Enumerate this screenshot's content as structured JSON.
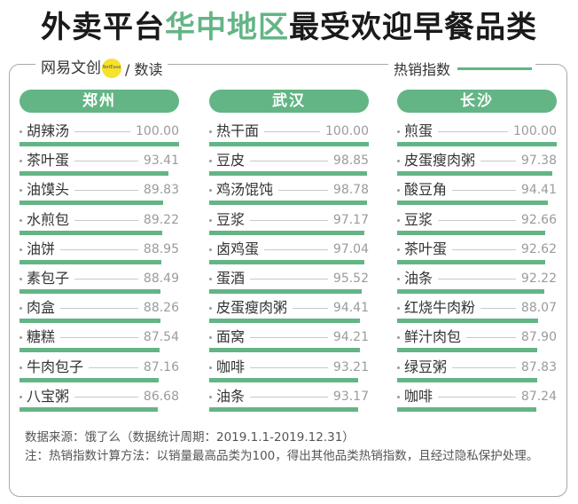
{
  "title": {
    "prefix": "外卖平台",
    "highlight": "华中地区",
    "suffix": "最受欢迎早餐品类"
  },
  "brand": {
    "name": "网易文创",
    "badge": "NetEase",
    "sub": "/ 数读"
  },
  "legend": {
    "label": "热销指数"
  },
  "colors": {
    "accent": "#63b585",
    "badge": "#f5e22b"
  },
  "chart_data": {
    "type": "bar",
    "value_range": [
      0,
      100
    ],
    "panels": [
      {
        "city": "郑州",
        "items": [
          {
            "name": "胡辣汤",
            "value": 100.0,
            "label": "100.00"
          },
          {
            "name": "茶叶蛋",
            "value": 93.41,
            "label": "93.41"
          },
          {
            "name": "油馍头",
            "value": 89.83,
            "label": "89.83"
          },
          {
            "name": "水煎包",
            "value": 89.22,
            "label": "89.22"
          },
          {
            "name": "油饼",
            "value": 88.95,
            "label": "88.95"
          },
          {
            "name": "素包子",
            "value": 88.49,
            "label": "88.49"
          },
          {
            "name": "肉盒",
            "value": 88.26,
            "label": "88.26"
          },
          {
            "name": "糖糕",
            "value": 87.54,
            "label": "87.54"
          },
          {
            "name": "牛肉包子",
            "value": 87.16,
            "label": "87.16"
          },
          {
            "name": "八宝粥",
            "value": 86.68,
            "label": "86.68"
          }
        ]
      },
      {
        "city": "武汉",
        "items": [
          {
            "name": "热干面",
            "value": 100.0,
            "label": "100.00"
          },
          {
            "name": "豆皮",
            "value": 98.85,
            "label": "98.85"
          },
          {
            "name": "鸡汤馄饨",
            "value": 98.78,
            "label": "98.78"
          },
          {
            "name": "豆浆",
            "value": 97.17,
            "label": "97.17"
          },
          {
            "name": "卤鸡蛋",
            "value": 97.04,
            "label": "97.04"
          },
          {
            "name": "蛋酒",
            "value": 95.52,
            "label": "95.52"
          },
          {
            "name": "皮蛋瘦肉粥",
            "value": 94.41,
            "label": "94.41"
          },
          {
            "name": "面窝",
            "value": 94.21,
            "label": "94.21"
          },
          {
            "name": "咖啡",
            "value": 93.21,
            "label": "93.21"
          },
          {
            "name": "油条",
            "value": 93.17,
            "label": "93.17"
          }
        ]
      },
      {
        "city": "长沙",
        "items": [
          {
            "name": "煎蛋",
            "value": 100.0,
            "label": "100.00"
          },
          {
            "name": "皮蛋瘦肉粥",
            "value": 97.38,
            "label": "97.38"
          },
          {
            "name": "酸豆角",
            "value": 94.41,
            "label": "94.41"
          },
          {
            "name": "豆浆",
            "value": 92.66,
            "label": "92.66"
          },
          {
            "name": "茶叶蛋",
            "value": 92.62,
            "label": "92.62"
          },
          {
            "name": "油条",
            "value": 92.22,
            "label": "92.22"
          },
          {
            "name": "红烧牛肉粉",
            "value": 88.07,
            "label": "88.07"
          },
          {
            "name": "鲜汁肉包",
            "value": 87.9,
            "label": "87.90"
          },
          {
            "name": "绿豆粥",
            "value": 87.83,
            "label": "87.83"
          },
          {
            "name": "咖啡",
            "value": 87.24,
            "label": "87.24"
          }
        ]
      }
    ]
  },
  "notes": {
    "source": "数据来源：饿了么（数据统计周期：2019.1.1-2019.12.31）",
    "method": "注：热销指数计算方法：以销量最高品类为100，得出其他品类热销指数，且经过隐私保护处理。"
  }
}
